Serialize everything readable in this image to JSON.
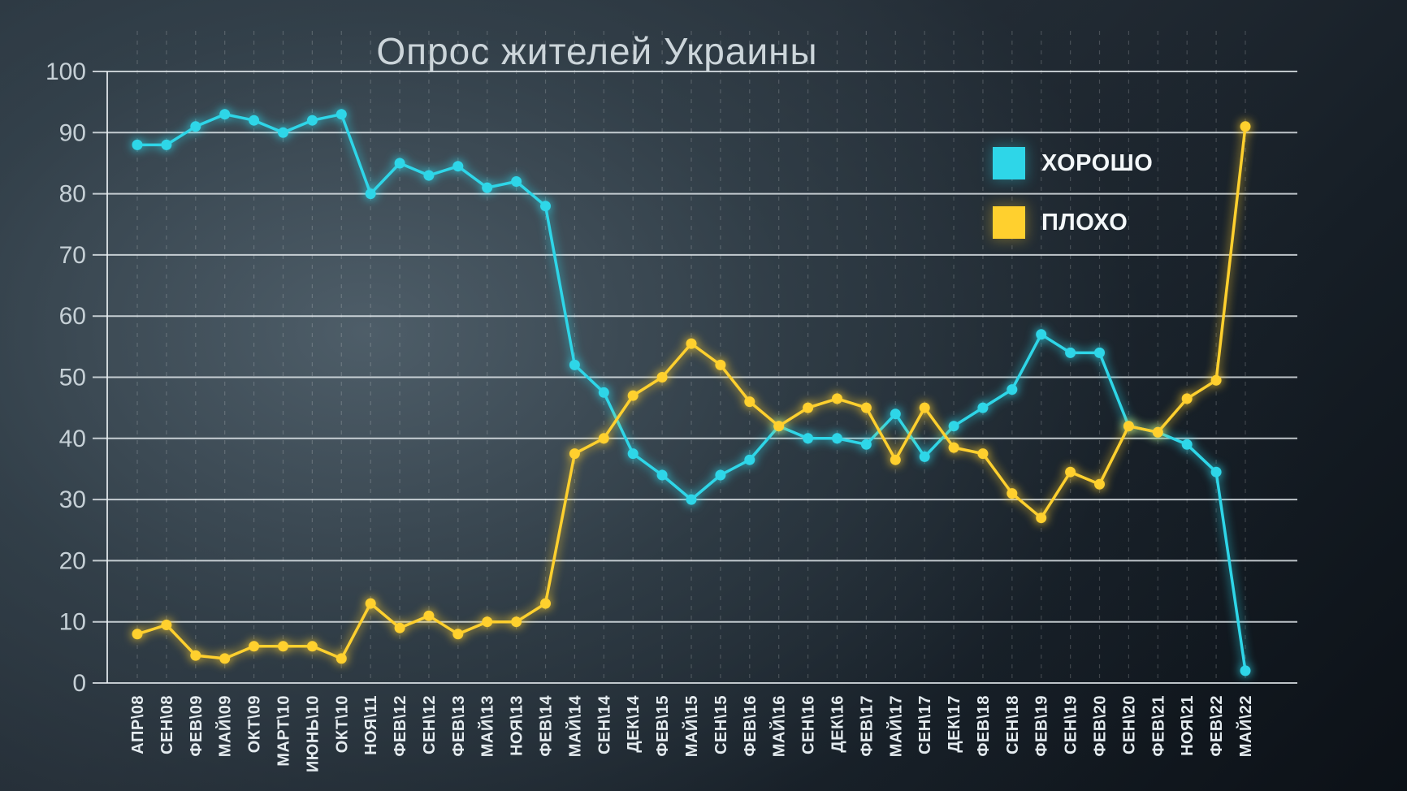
{
  "chart_data": {
    "type": "line",
    "title": "Опрос жителей Украины",
    "xlabel": "",
    "ylabel": "",
    "ylim": [
      0,
      100
    ],
    "y_ticks": [
      0,
      10,
      20,
      30,
      40,
      50,
      60,
      70,
      80,
      90,
      100
    ],
    "grid": {
      "horizontal": "solid",
      "vertical": "dashed-per-category"
    },
    "legend_position": "upper-right",
    "categories": [
      "АПР\\08",
      "СЕН\\08",
      "ФЕВ\\09",
      "МАЙ\\09",
      "ОКТ\\09",
      "МАРТ\\10",
      "ИЮНЬ\\10",
      "ОКТ\\10",
      "НОЯ\\11",
      "ФЕВ\\12",
      "СЕН\\12",
      "ФЕВ\\13",
      "МАЙ\\13",
      "НОЯ\\13",
      "ФЕВ\\14",
      "МАЙ\\14",
      "СЕН\\14",
      "ДЕК\\14",
      "ФЕВ\\15",
      "МАЙ\\15",
      "СЕН\\15",
      "ФЕВ\\16",
      "МАЙ\\16",
      "СЕН\\16",
      "ДЕК\\16",
      "ФЕВ\\17",
      "МАЙ\\17",
      "СЕН\\17",
      "ДЕК\\17",
      "ФЕВ\\18",
      "СЕН\\18",
      "ФЕВ\\19",
      "СЕН\\19",
      "ФЕВ\\20",
      "СЕН\\20",
      "ФЕВ\\21",
      "НОЯ\\21",
      "ФЕВ\\22",
      "МАЙ\\22"
    ],
    "series": [
      {
        "name": "ХОРОШО",
        "color": "#2ed6e8",
        "values": [
          88,
          88,
          91,
          93,
          92,
          90,
          92,
          93,
          80,
          85,
          83,
          84.5,
          81,
          82,
          78,
          52,
          47.5,
          37.5,
          34,
          30,
          34,
          36.5,
          42,
          40,
          40,
          39,
          44,
          37,
          42,
          45,
          48,
          57,
          54,
          54,
          42,
          41,
          39,
          34.5,
          2
        ]
      },
      {
        "name": "ПЛОХО",
        "color": "#ffd02e",
        "values": [
          8,
          9.5,
          4.5,
          4,
          6,
          6,
          6,
          4,
          13,
          9,
          11,
          8,
          10,
          10,
          13,
          37.5,
          40,
          47,
          50,
          55.5,
          52,
          46,
          42,
          45,
          46.5,
          45,
          36.5,
          45,
          38.5,
          37.5,
          31,
          27,
          34.5,
          32.5,
          42,
          41,
          46.5,
          49.5,
          91
        ]
      }
    ],
    "colors": {
      "background_center": "#45555f",
      "background_corner": "#0c1117",
      "gridline": "#e9eff2",
      "axis_text": "#c6d0d6",
      "title_text": "#ccd5da"
    }
  }
}
